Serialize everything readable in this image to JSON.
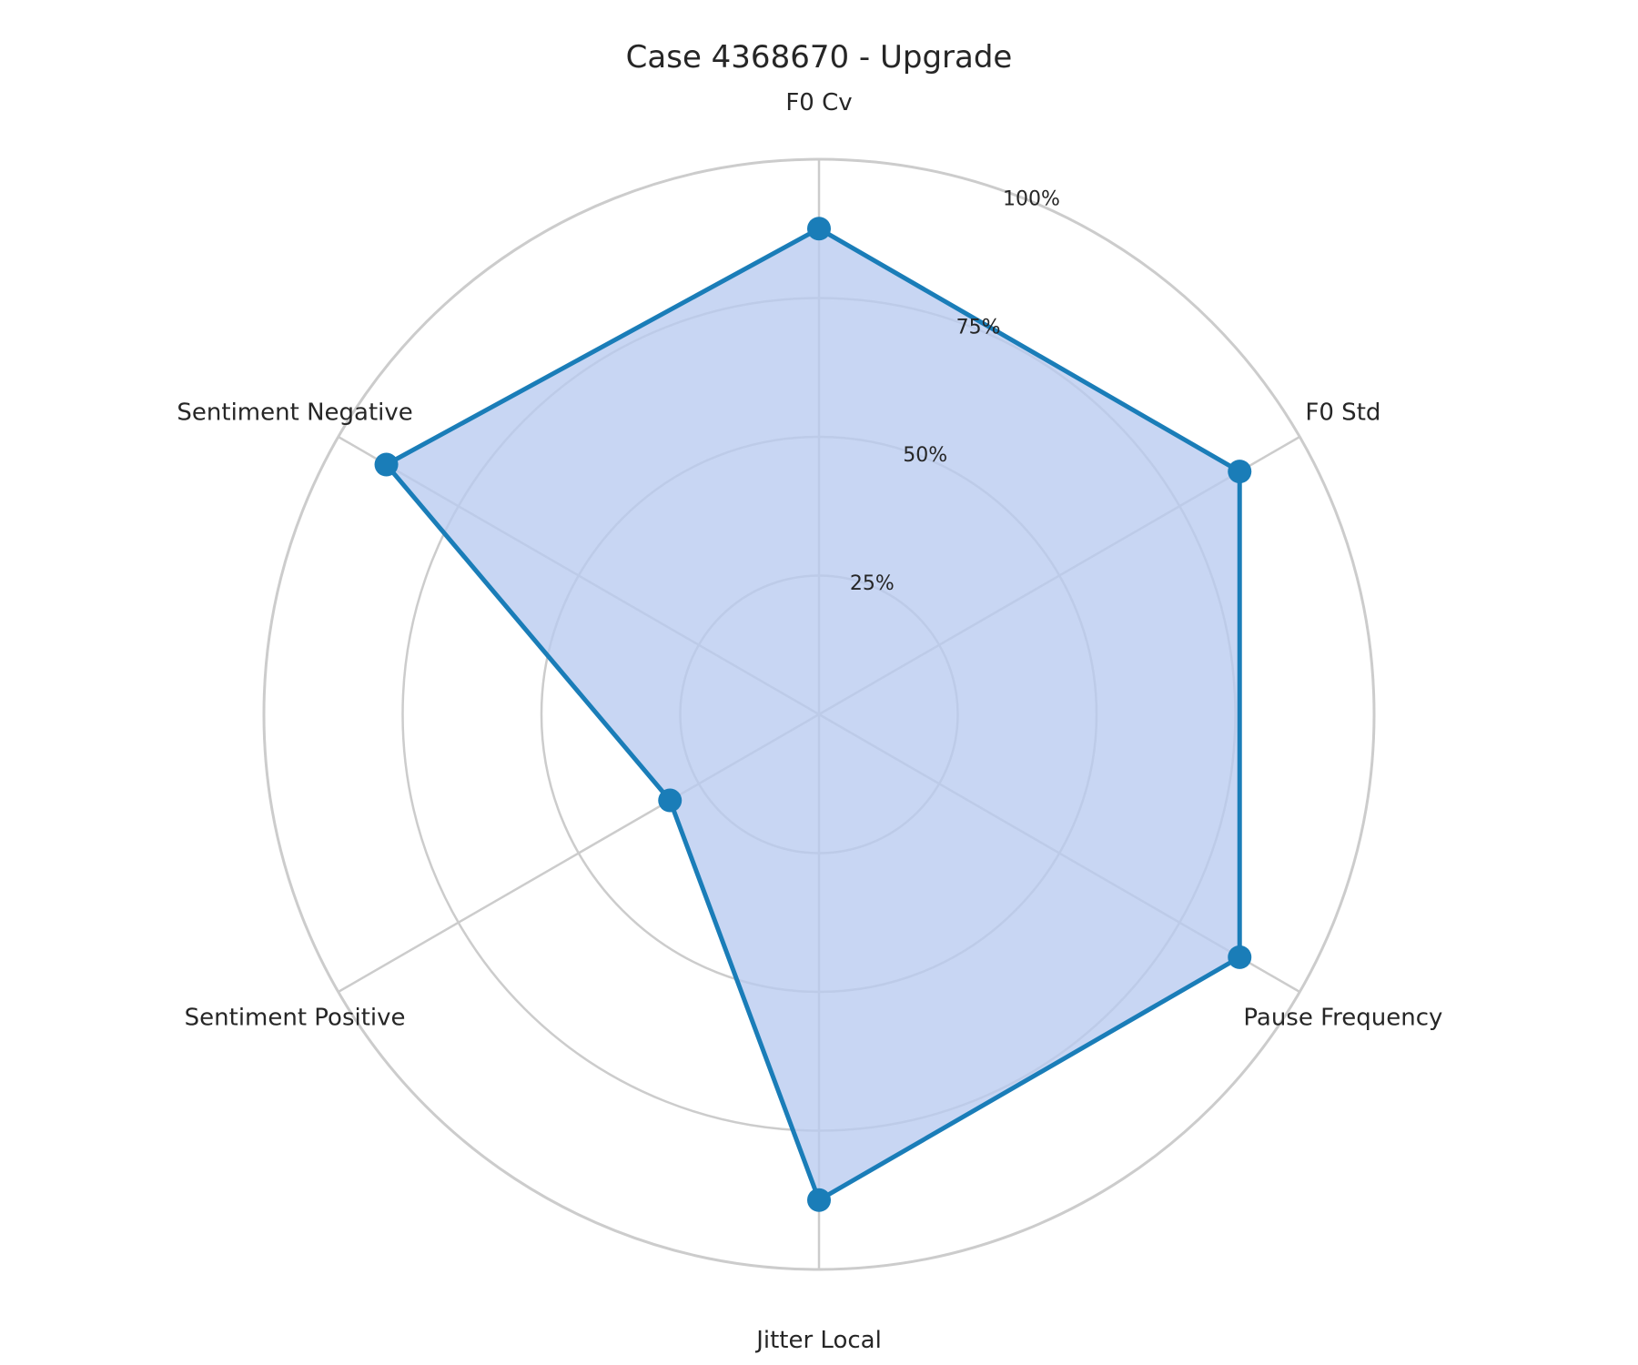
{
  "chart_data": {
    "type": "radar",
    "title": "Case 4368670 - Upgrade",
    "categories": [
      "F0 Cv",
      "F0 Std",
      "Pause Frequency",
      "Jitter Local",
      "Sentiment Positive",
      "Sentiment Negative"
    ],
    "series": [
      {
        "values": [
          87.5,
          87.5,
          87.5,
          87.5,
          31.0,
          90.0
        ]
      }
    ],
    "r_range": [
      0,
      100
    ],
    "r_ticks": [
      25,
      50,
      75,
      100
    ],
    "r_tick_labels": [
      "25%",
      "50%",
      "75%",
      "100%"
    ],
    "grid": true,
    "colors": {
      "line": "#1a7db8",
      "fill": "#b9cbf0",
      "grid": "#cccccc"
    }
  }
}
